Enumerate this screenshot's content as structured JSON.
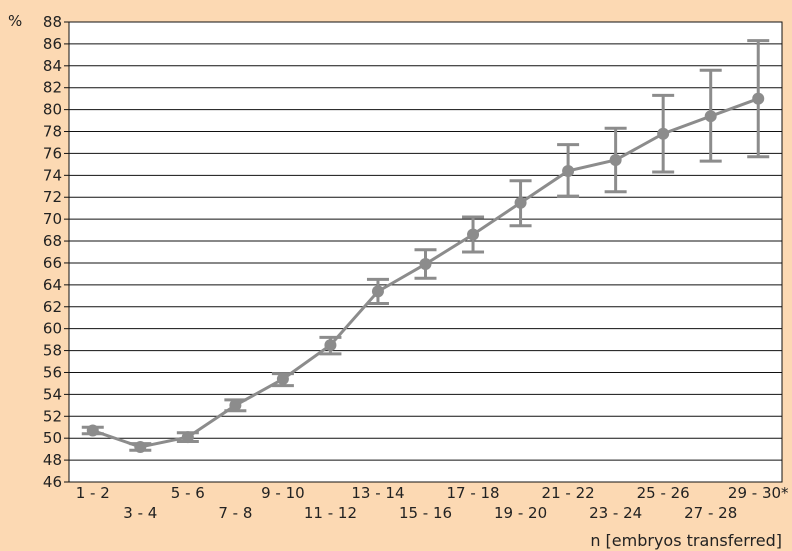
{
  "chart_data": {
    "type": "line",
    "title": "",
    "y_unit_label": "%",
    "xlabel": "n [embryos transferred]",
    "ylim": [
      46,
      88
    ],
    "y_ticks": [
      46,
      48,
      50,
      52,
      54,
      56,
      58,
      60,
      62,
      64,
      66,
      68,
      70,
      72,
      74,
      76,
      78,
      80,
      82,
      84,
      86,
      88
    ],
    "categories": [
      "1 - 2",
      "3 - 4",
      "5 - 6",
      "7 - 8",
      "9 - 10",
      "11 - 12",
      "13 - 14",
      "15 - 16",
      "17 - 18",
      "19 - 20",
      "21 - 22",
      "23 - 24",
      "25 - 26",
      "27 - 28",
      "29 - 30*"
    ],
    "series": [
      {
        "values": [
          50.7,
          49.2,
          50.1,
          53.0,
          55.4,
          58.5,
          63.4,
          65.9,
          68.6,
          71.5,
          74.4,
          75.4,
          77.8,
          79.4,
          81.0
        ],
        "error_low": [
          50.4,
          48.9,
          49.7,
          52.5,
          54.8,
          57.7,
          62.3,
          64.6,
          67.0,
          69.4,
          72.1,
          72.5,
          74.3,
          75.3,
          75.7
        ],
        "error_high": [
          51.0,
          49.5,
          50.5,
          53.5,
          55.9,
          59.2,
          64.5,
          67.2,
          70.2,
          73.5,
          76.8,
          78.3,
          81.3,
          83.6,
          86.3
        ]
      }
    ],
    "grid": true,
    "colors": {
      "line": "#8c8c8c",
      "grid": "#111111",
      "background": "#fcd9b3",
      "plot_background": "#ffffff"
    }
  }
}
